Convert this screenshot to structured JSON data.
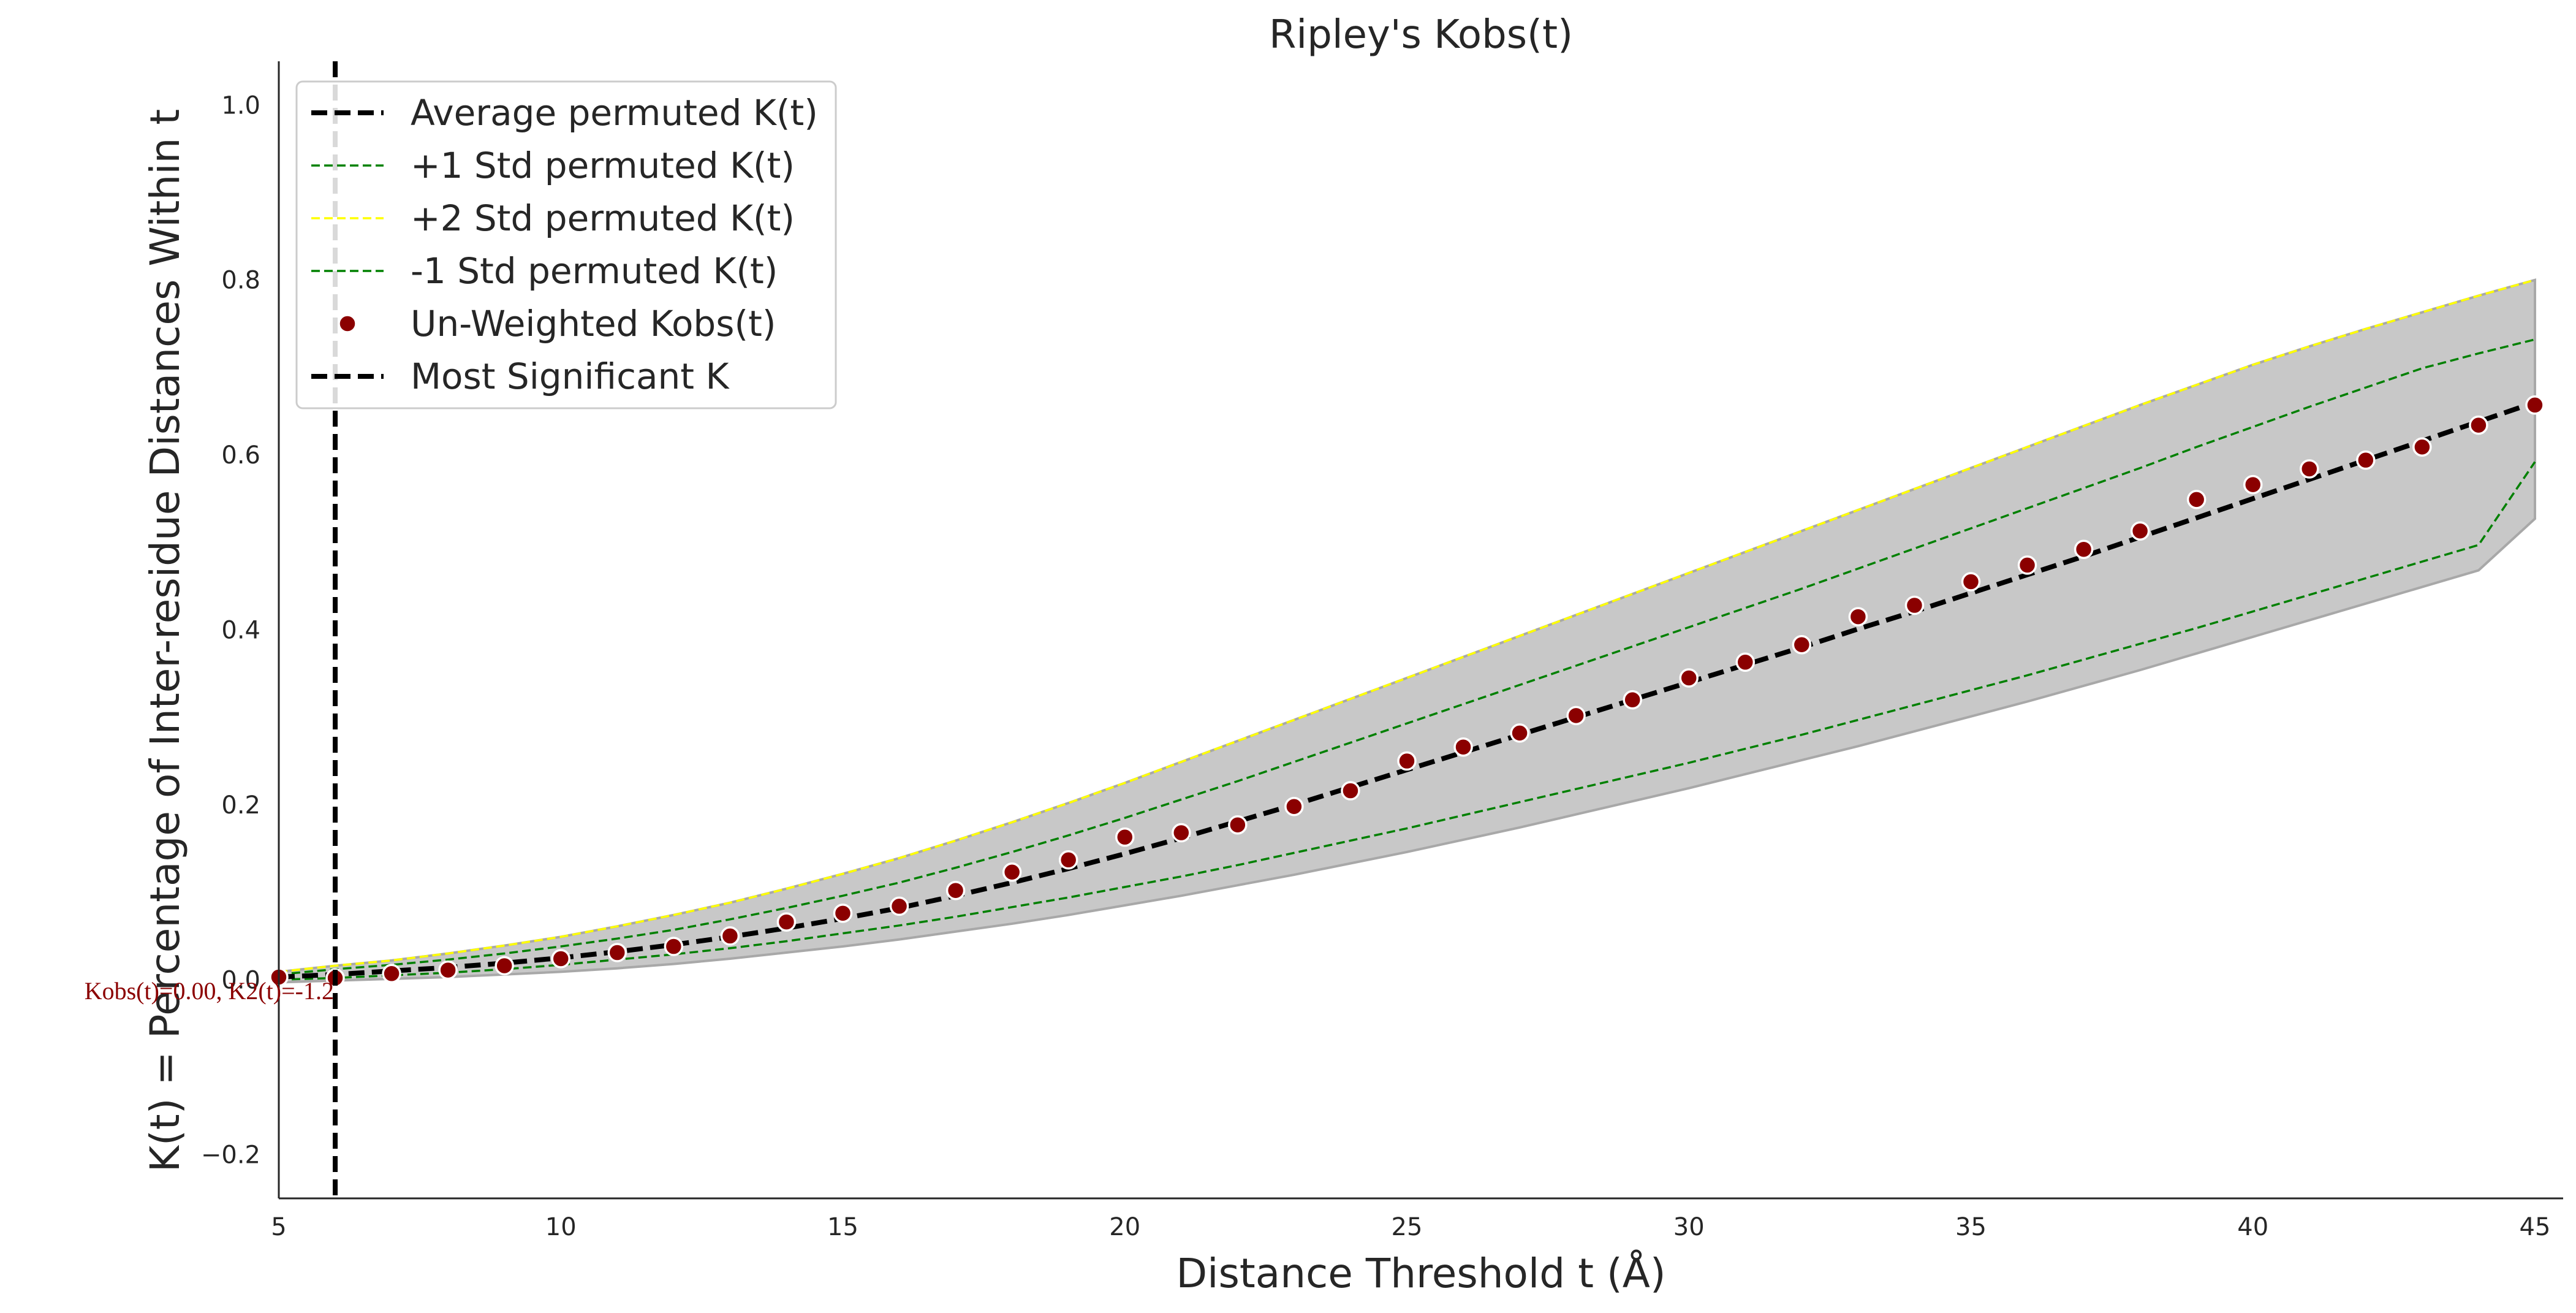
{
  "chart_data": {
    "type": "line",
    "title": "Ripley's Kobs(t)",
    "xlabel": "Distance Threshold t (Å)",
    "ylabel": "K(t) = Percentage of Inter-residue Distances Within t",
    "xlim": [
      5,
      45.5
    ],
    "ylim": [
      -0.25,
      1.05
    ],
    "xticks": [
      5,
      10,
      15,
      20,
      25,
      30,
      35,
      40,
      45
    ],
    "yticks": [
      -0.2,
      0.0,
      0.2,
      0.4,
      0.6,
      0.8,
      1.0
    ],
    "x": [
      5,
      6,
      7,
      8,
      9,
      10,
      11,
      12,
      13,
      14,
      15,
      16,
      17,
      18,
      19,
      20,
      21,
      22,
      23,
      24,
      25,
      26,
      27,
      28,
      29,
      30,
      31,
      32,
      33,
      34,
      35,
      36,
      37,
      38,
      39,
      40,
      41,
      42,
      43,
      44,
      45
    ],
    "series": [
      {
        "name": "Average permuted K(t)",
        "style": "dashed",
        "color": "#000000",
        "values": [
          0.003,
          0.006,
          0.01,
          0.014,
          0.019,
          0.025,
          0.032,
          0.04,
          0.049,
          0.059,
          0.07,
          0.082,
          0.096,
          0.111,
          0.127,
          0.144,
          0.162,
          0.181,
          0.2,
          0.22,
          0.24,
          0.26,
          0.28,
          0.3,
          0.32,
          0.34,
          0.36,
          0.38,
          0.401,
          0.421,
          0.442,
          0.463,
          0.484,
          0.506,
          0.528,
          0.55,
          0.572,
          0.594,
          0.616,
          0.638,
          0.66
        ]
      },
      {
        "name": "+1 Std permuted K(t)",
        "style": "dashed",
        "color": "#008000",
        "values": [
          0.006,
          0.012,
          0.017,
          0.023,
          0.03,
          0.038,
          0.047,
          0.057,
          0.069,
          0.082,
          0.096,
          0.111,
          0.128,
          0.146,
          0.165,
          0.185,
          0.206,
          0.227,
          0.249,
          0.271,
          0.293,
          0.315,
          0.337,
          0.359,
          0.381,
          0.403,
          0.425,
          0.447,
          0.47,
          0.493,
          0.516,
          0.539,
          0.562,
          0.585,
          0.609,
          0.632,
          0.655,
          0.677,
          0.699,
          0.716,
          0.732
        ]
      },
      {
        "name": "+2 Std permuted K(t)",
        "style": "dashed",
        "color": "#ffff00",
        "values": [
          0.009,
          0.016,
          0.022,
          0.03,
          0.039,
          0.049,
          0.061,
          0.074,
          0.088,
          0.104,
          0.121,
          0.139,
          0.159,
          0.18,
          0.202,
          0.225,
          0.249,
          0.273,
          0.297,
          0.321,
          0.345,
          0.369,
          0.393,
          0.417,
          0.441,
          0.465,
          0.489,
          0.513,
          0.537,
          0.561,
          0.585,
          0.609,
          0.633,
          0.657,
          0.68,
          0.703,
          0.724,
          0.744,
          0.763,
          0.782,
          0.8
        ]
      },
      {
        "name": "-1 Std permuted K(t)",
        "style": "dashed",
        "color": "#008000",
        "values": [
          0.0,
          0.002,
          0.005,
          0.008,
          0.012,
          0.017,
          0.023,
          0.029,
          0.036,
          0.044,
          0.053,
          0.062,
          0.072,
          0.083,
          0.094,
          0.106,
          0.118,
          0.131,
          0.145,
          0.159,
          0.173,
          0.188,
          0.203,
          0.218,
          0.233,
          0.248,
          0.264,
          0.28,
          0.297,
          0.314,
          0.331,
          0.348,
          0.366,
          0.384,
          0.402,
          0.421,
          0.44,
          0.459,
          0.478,
          0.497,
          0.592
        ]
      },
      {
        "name": "Un-Weighted Kobs(t)",
        "style": "points",
        "color": "#8b0000",
        "values": [
          0.003,
          0.002,
          0.007,
          0.011,
          0.016,
          0.024,
          0.031,
          0.038,
          0.05,
          0.066,
          0.076,
          0.084,
          0.102,
          0.123,
          0.137,
          0.163,
          0.168,
          0.177,
          0.198,
          0.216,
          0.25,
          0.266,
          0.282,
          0.302,
          0.32,
          0.345,
          0.363,
          0.383,
          0.415,
          0.428,
          0.455,
          0.474,
          0.492,
          0.513,
          0.549,
          0.566,
          0.584,
          0.594,
          0.609,
          0.634,
          0.657
        ]
      }
    ],
    "band": {
      "upper": [
        0.009,
        0.016,
        0.022,
        0.03,
        0.039,
        0.049,
        0.061,
        0.074,
        0.088,
        0.104,
        0.121,
        0.139,
        0.159,
        0.18,
        0.202,
        0.225,
        0.249,
        0.273,
        0.297,
        0.321,
        0.345,
        0.369,
        0.393,
        0.417,
        0.441,
        0.465,
        0.489,
        0.513,
        0.537,
        0.561,
        0.585,
        0.609,
        0.633,
        0.657,
        0.68,
        0.703,
        0.724,
        0.744,
        0.763,
        0.782,
        0.8
      ],
      "lower": [
        -0.003,
        -0.001,
        0.001,
        0.003,
        0.006,
        0.009,
        0.013,
        0.018,
        0.024,
        0.031,
        0.038,
        0.046,
        0.055,
        0.064,
        0.074,
        0.085,
        0.096,
        0.108,
        0.12,
        0.133,
        0.146,
        0.16,
        0.174,
        0.189,
        0.204,
        0.219,
        0.235,
        0.251,
        0.267,
        0.284,
        0.301,
        0.318,
        0.336,
        0.354,
        0.373,
        0.392,
        0.411,
        0.43,
        0.449,
        0.468,
        0.527
      ],
      "color": "#c8c8c8"
    },
    "vline": {
      "name": "Most Significant K",
      "x": 6,
      "color": "#000000",
      "style": "dashed"
    },
    "annotation": {
      "text": "Kobs(t)=0.00, K2(t)=-1.2",
      "x": 6,
      "y": 0.0
    },
    "legend_placement": "top-left",
    "grid": false
  }
}
